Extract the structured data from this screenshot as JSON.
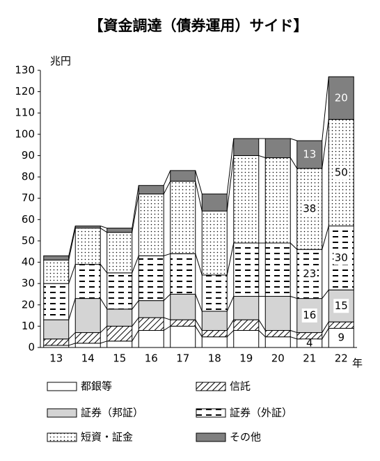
{
  "chart_data": {
    "type": "stacked_bar",
    "title": "【資金調達（債券運用）サイド】",
    "y_unit": "兆円",
    "x_unit": "年",
    "categories": [
      "13",
      "14",
      "15",
      "16",
      "17",
      "18",
      "19",
      "20",
      "21",
      "22"
    ],
    "ylim": [
      0,
      130
    ],
    "yticks": [
      0,
      10,
      20,
      30,
      40,
      50,
      60,
      70,
      80,
      90,
      100,
      110,
      120,
      130
    ],
    "series": [
      {
        "name": "都銀等",
        "color": "#ffffff",
        "pattern": "none",
        "values": [
          1,
          2,
          3,
          8,
          10,
          5,
          8,
          5,
          4,
          9
        ],
        "value_labels": [
          null,
          null,
          null,
          null,
          null,
          null,
          null,
          null,
          "4",
          "9"
        ]
      },
      {
        "name": "信託",
        "color": "#ffffff",
        "pattern": "hatch",
        "values": [
          3,
          5,
          7,
          6,
          3,
          3,
          5,
          3,
          3,
          3
        ]
      },
      {
        "name": "証券（邦証）",
        "color": "#d4d4d4",
        "pattern": "none",
        "values": [
          9,
          16,
          8,
          8,
          12,
          9,
          11,
          16,
          16,
          15
        ],
        "value_labels": [
          null,
          null,
          null,
          null,
          null,
          null,
          null,
          null,
          "16",
          "15"
        ]
      },
      {
        "name": "証券（外証）",
        "color": "#ffffff",
        "pattern": "dash",
        "values": [
          17,
          16,
          17,
          21,
          19,
          17,
          25,
          25,
          23,
          30
        ],
        "value_labels": [
          null,
          null,
          null,
          null,
          null,
          null,
          null,
          null,
          "23",
          "30"
        ]
      },
      {
        "name": "短資・証金",
        "color": "#ffffff",
        "pattern": "dot",
        "values": [
          11,
          17,
          19,
          29,
          34,
          30,
          41,
          40,
          38,
          50
        ],
        "value_labels": [
          null,
          null,
          null,
          null,
          null,
          null,
          null,
          null,
          "38",
          "50"
        ]
      },
      {
        "name": "その他",
        "color": "#808080",
        "pattern": "none",
        "values": [
          2,
          1,
          2,
          4,
          5,
          8,
          8,
          9,
          13,
          20
        ],
        "value_labels": [
          null,
          null,
          null,
          null,
          null,
          null,
          null,
          null,
          "13",
          "20"
        ]
      }
    ]
  }
}
